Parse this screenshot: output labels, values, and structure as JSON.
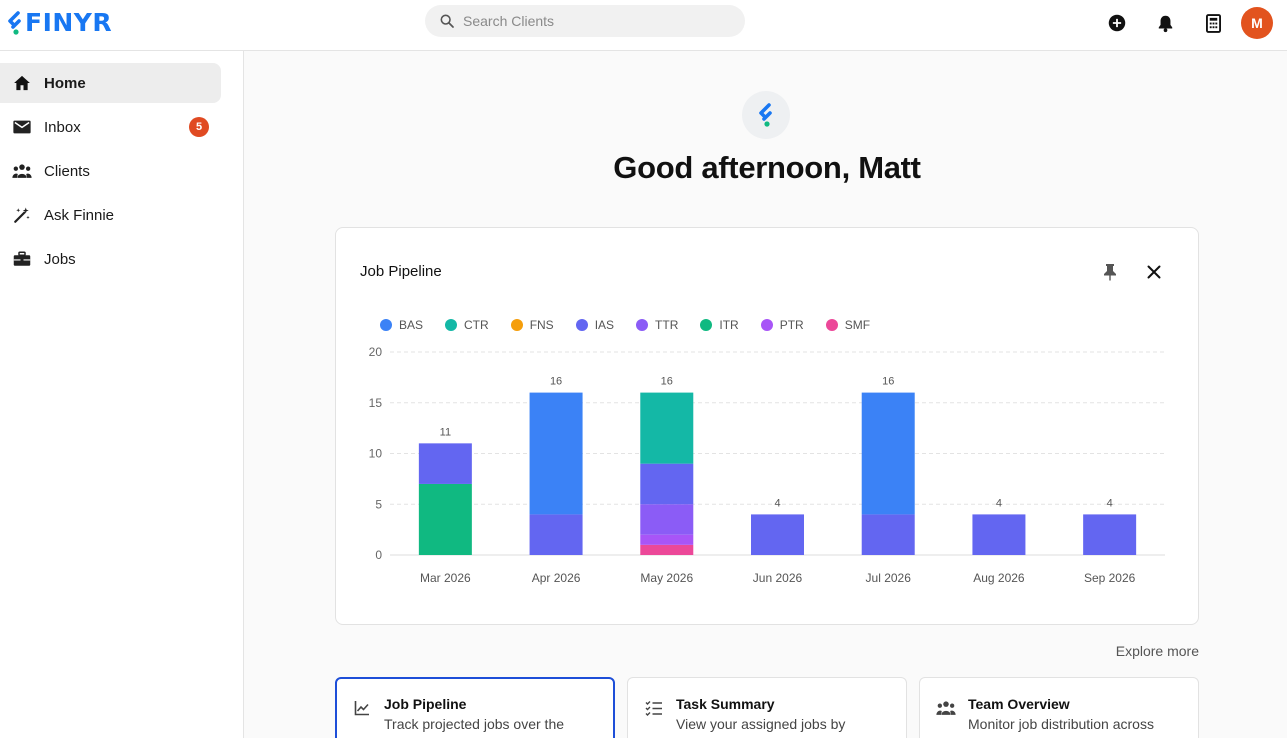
{
  "app": {
    "logo_text": "FINYR"
  },
  "search": {
    "placeholder": "Search Clients",
    "value": ""
  },
  "user": {
    "initial": "M",
    "avatar_color": "#e2531e"
  },
  "top_icons": [
    "add-circle-icon",
    "bell-icon",
    "calculator-icon"
  ],
  "sidebar": {
    "items": [
      {
        "label": "Home",
        "icon": "home-icon",
        "active": true
      },
      {
        "label": "Inbox",
        "icon": "mail-icon",
        "badge": "5"
      },
      {
        "label": "Clients",
        "icon": "people-icon"
      },
      {
        "label": "Ask Finnie",
        "icon": "magic-wand-icon"
      },
      {
        "label": "Jobs",
        "icon": "briefcase-icon"
      }
    ]
  },
  "greeting": "Good afternoon, Matt",
  "card": {
    "title": "Job Pipeline"
  },
  "chart_data": {
    "type": "bar",
    "stacked": true,
    "categories": [
      "Mar 2026",
      "Apr 2026",
      "May 2026",
      "Jun 2026",
      "Jul 2026",
      "Aug 2026",
      "Sep 2026"
    ],
    "series": [
      {
        "name": "BAS",
        "color": "#3b82f6",
        "values": [
          0,
          12,
          0,
          0,
          12,
          0,
          0
        ]
      },
      {
        "name": "CTR",
        "color": "#14b8a6",
        "values": [
          0,
          0,
          7,
          0,
          0,
          0,
          0
        ]
      },
      {
        "name": "FNS",
        "color": "#f59e0b",
        "values": [
          0,
          0,
          0,
          0,
          0,
          0,
          0
        ]
      },
      {
        "name": "IAS",
        "color": "#6366f1",
        "values": [
          4,
          4,
          4,
          4,
          4,
          4,
          4
        ]
      },
      {
        "name": "TTR",
        "color": "#8b5cf6",
        "values": [
          0,
          0,
          3,
          0,
          0,
          0,
          0
        ]
      },
      {
        "name": "ITR",
        "color": "#10b981",
        "values": [
          7,
          0,
          0,
          0,
          0,
          0,
          0
        ]
      },
      {
        "name": "PTR",
        "color": "#a855f7",
        "values": [
          0,
          0,
          1,
          0,
          0,
          0,
          0
        ]
      },
      {
        "name": "SMF",
        "color": "#ec4899",
        "values": [
          0,
          0,
          1,
          0,
          0,
          0,
          0
        ]
      }
    ],
    "stack_order": [
      "SMF",
      "PTR",
      "TTR",
      "ITR",
      "IAS",
      "CTR",
      "BAS"
    ],
    "totals": [
      11,
      16,
      16,
      4,
      16,
      4,
      4
    ],
    "ylim": [
      0,
      20
    ],
    "yticks": [
      0,
      5,
      10,
      15,
      20
    ],
    "grid": true,
    "legend_position": "top-left"
  },
  "explore_more": "Explore more",
  "bottom_cards": [
    {
      "title": "Job Pipeline",
      "desc": "Track projected jobs over the",
      "icon": "line-chart-icon",
      "selected": true
    },
    {
      "title": "Task Summary",
      "desc": "View your assigned jobs by",
      "icon": "checklist-icon"
    },
    {
      "title": "Team Overview",
      "desc": "Monitor job distribution across",
      "icon": "team-icon"
    }
  ]
}
